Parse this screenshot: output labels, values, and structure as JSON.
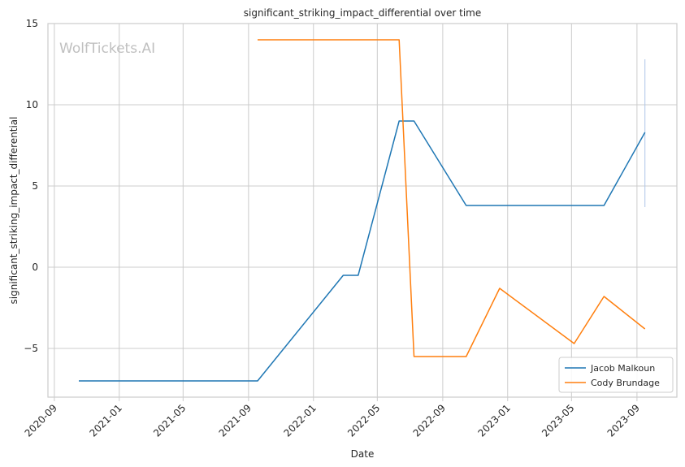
{
  "chart_data": {
    "type": "line",
    "title": "significant_striking_impact_differential over time",
    "xlabel": "Date",
    "ylabel": "significant_striking_impact_differential",
    "watermark": "WolfTickets.AI",
    "x_ticks": [
      "2020-09",
      "2021-01",
      "2021-05",
      "2021-09",
      "2022-01",
      "2022-05",
      "2022-09",
      "2023-01",
      "2023-05",
      "2023-09"
    ],
    "y_ticks": [
      -5,
      0,
      5,
      10,
      15
    ],
    "y_tick_labels": [
      "−5",
      "0",
      "5",
      "10",
      "15"
    ],
    "xlim": [
      "2020-08-20",
      "2023-11-15"
    ],
    "ylim": [
      -8.0,
      15.0
    ],
    "grid": true,
    "legend_position": "bottom-right",
    "series": [
      {
        "name": "Jacob Malkoun",
        "color": "#1f77b4",
        "points": [
          {
            "x": "2020-10-17",
            "y": -7.0
          },
          {
            "x": "2021-09-18",
            "y": -7.0
          },
          {
            "x": "2022-02-26",
            "y": -0.5
          },
          {
            "x": "2022-03-26",
            "y": -0.5
          },
          {
            "x": "2022-06-11",
            "y": 9.0
          },
          {
            "x": "2022-07-09",
            "y": 9.0
          },
          {
            "x": "2022-10-15",
            "y": 3.8
          },
          {
            "x": "2023-07-01",
            "y": 3.8
          },
          {
            "x": "2023-09-16",
            "y": 8.3
          }
        ]
      },
      {
        "name": "Cody Brundage",
        "color": "#ff7f0e",
        "points": [
          {
            "x": "2021-09-18",
            "y": 14.0
          },
          {
            "x": "2022-06-11",
            "y": 14.0
          },
          {
            "x": "2022-07-09",
            "y": -5.5
          },
          {
            "x": "2022-10-15",
            "y": -5.5
          },
          {
            "x": "2022-12-17",
            "y": -1.3
          },
          {
            "x": "2023-05-06",
            "y": -4.7
          },
          {
            "x": "2023-07-01",
            "y": -1.8
          },
          {
            "x": "2023-09-16",
            "y": -3.8
          }
        ]
      }
    ],
    "error_bar": {
      "x": "2023-09-16",
      "low": 3.7,
      "high": 12.8,
      "color": "#aec7e8"
    }
  }
}
